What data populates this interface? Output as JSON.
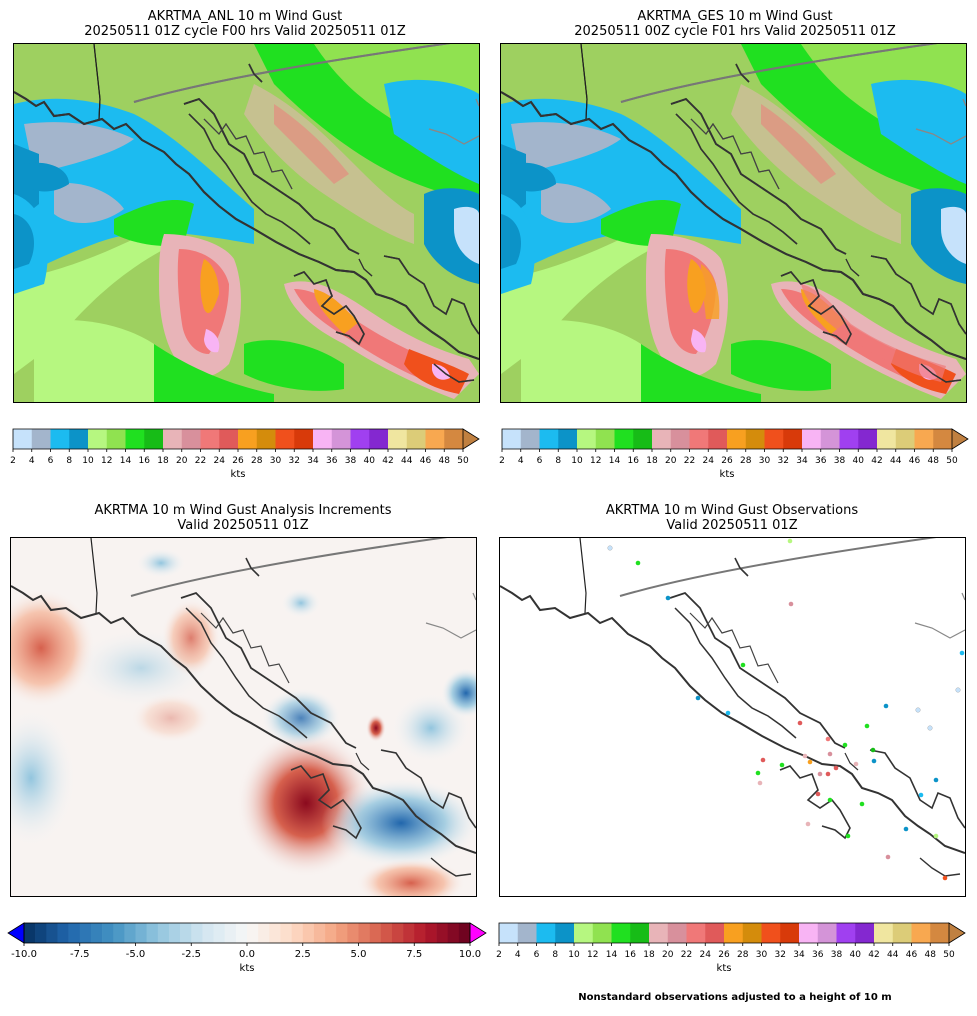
{
  "panels": {
    "anl": {
      "title_line1": "AKRTMA_ANL 10 m Wind Gust",
      "title_line2": "20250511 01Z cycle F00 hrs Valid 20250511 01Z"
    },
    "ges": {
      "title_line1": "AKRTMA_GES 10 m Wind Gust",
      "title_line2": "20250511 00Z cycle F01 hrs Valid 20250511 01Z"
    },
    "inc": {
      "title_line1": "AKRTMA 10 m Wind Gust Analysis Increments",
      "title_line2": "Valid 20250511 01Z"
    },
    "obs": {
      "title_line1": "AKRTMA 10 m Wind Gust Observations",
      "title_line2": "Valid 20250511 01Z"
    }
  },
  "note": "Nonstandard observations adjusted to a height of 10 m",
  "chart_data": [
    {
      "type": "colorbar",
      "name": "speed-colorbar",
      "label": "kts",
      "ticks": [
        "2",
        "4",
        "6",
        "8",
        "10",
        "12",
        "14",
        "16",
        "18",
        "20",
        "22",
        "24",
        "26",
        "28",
        "30",
        "32",
        "34",
        "36",
        "38",
        "40",
        "42",
        "44",
        "46",
        "48",
        "50"
      ],
      "colors": [
        "#c6e2fb",
        "#a3b5cc",
        "#1cbbf0",
        "#0c93c8",
        "#b6f780",
        "#90e250",
        "#20e020",
        "#17bc17",
        "#e8b4b8",
        "#d8909c",
        "#f07878",
        "#e05a5a",
        "#f8a020",
        "#d48c0c",
        "#f0501c",
        "#d83a0a",
        "#f8b4f4",
        "#d494d8",
        "#a040f0",
        "#8428d0",
        "#f0e6a0",
        "#dccc78",
        "#f8a850",
        "#d48840"
      ],
      "extend": "max",
      "extend_color": "#c08040"
    },
    {
      "type": "colorbar",
      "name": "increment-colorbar",
      "label": "kts",
      "ticks": [
        "-10.0",
        "-7.5",
        "-5.0",
        "-2.5",
        "0.0",
        "2.5",
        "5.0",
        "7.5",
        "10.0"
      ],
      "range": [
        -10,
        10
      ],
      "cmap": "RdBu_r",
      "extend": "both",
      "extend_min_color": "#0000ff",
      "extend_max_color": "#ff00ff"
    },
    {
      "type": "scatter",
      "name": "observations",
      "units": "kts",
      "note": "Nonstandard observations adjusted to a height of 10 m"
    }
  ]
}
